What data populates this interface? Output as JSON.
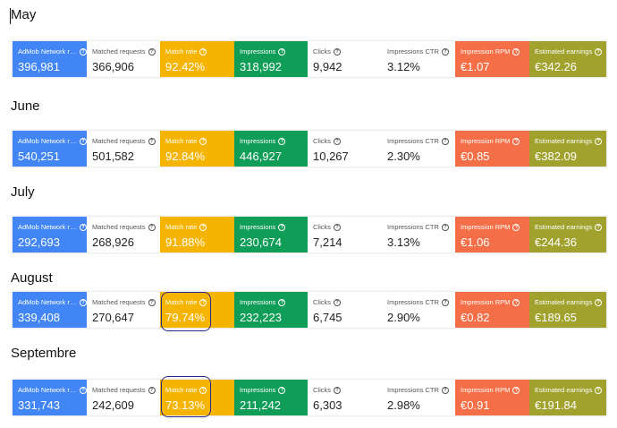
{
  "months": [
    {
      "name": "May",
      "metrics": [
        {
          "label": "AdMob Network re...",
          "value": "396,981"
        },
        {
          "label": "Matched requests",
          "value": "366,906"
        },
        {
          "label": "Match rate",
          "value": "92.42%"
        },
        {
          "label": "Impressions",
          "value": "318,992"
        },
        {
          "label": "Clicks",
          "value": "9,942"
        },
        {
          "label": "Impressions CTR",
          "value": "3.12%"
        },
        {
          "label": "Impression RPM",
          "value": "€1.07"
        },
        {
          "label": "Estimated earnings",
          "value": "€342.26"
        }
      ]
    },
    {
      "name": "June",
      "metrics": [
        {
          "label": "AdMob Network re...",
          "value": "540,251"
        },
        {
          "label": "Matched requests",
          "value": "501,582"
        },
        {
          "label": "Match rate",
          "value": "92.84%"
        },
        {
          "label": "Impressions",
          "value": "446,927"
        },
        {
          "label": "Clicks",
          "value": "10,267"
        },
        {
          "label": "Impressions CTR",
          "value": "2.30%"
        },
        {
          "label": "Impression RPM",
          "value": "€0.85"
        },
        {
          "label": "Estimated earnings",
          "value": "€382.09"
        }
      ]
    },
    {
      "name": "July",
      "metrics": [
        {
          "label": "AdMob Network re...",
          "value": "292,693"
        },
        {
          "label": "Matched requests",
          "value": "268,926"
        },
        {
          "label": "Match rate",
          "value": "91.88%"
        },
        {
          "label": "Impressions",
          "value": "230,674"
        },
        {
          "label": "Clicks",
          "value": "7,214"
        },
        {
          "label": "Impressions CTR",
          "value": "3.13%"
        },
        {
          "label": "Impression RPM",
          "value": "€1.06"
        },
        {
          "label": "Estimated earnings",
          "value": "€244.36"
        }
      ]
    },
    {
      "name": "August",
      "metrics": [
        {
          "label": "AdMob Network re...",
          "value": "339,408"
        },
        {
          "label": "Matched requests",
          "value": "270,647"
        },
        {
          "label": "Match rate",
          "value": "79.74%"
        },
        {
          "label": "Impressions",
          "value": "232,223"
        },
        {
          "label": "Clicks",
          "value": "6,745"
        },
        {
          "label": "Impressions CTR",
          "value": "2.90%"
        },
        {
          "label": "Impression RPM",
          "value": "€0.82"
        },
        {
          "label": "Estimated earnings",
          "value": "€189.65"
        }
      ]
    },
    {
      "name": "Septembre",
      "metrics": [
        {
          "label": "AdMob Network re...",
          "value": "331,743"
        },
        {
          "label": "Matched requests",
          "value": "242,609"
        },
        {
          "label": "Match rate",
          "value": "73.13%"
        },
        {
          "label": "Impressions",
          "value": "211,242"
        },
        {
          "label": "Clicks",
          "value": "6,303"
        },
        {
          "label": "Impressions CTR",
          "value": "2.98%"
        },
        {
          "label": "Impression RPM",
          "value": "€0.91"
        },
        {
          "label": "Estimated earnings",
          "value": "€191.84"
        }
      ]
    }
  ],
  "colors": {
    "admob_requests": "#4285f4",
    "match_rate": "#f4b400",
    "impressions": "#0f9d58",
    "impression_rpm": "#f46f47",
    "estimated_earnings": "#a0a22d",
    "highlight_ring": "#2a2a8a"
  },
  "icons": {
    "help": "help-circle-icon"
  }
}
